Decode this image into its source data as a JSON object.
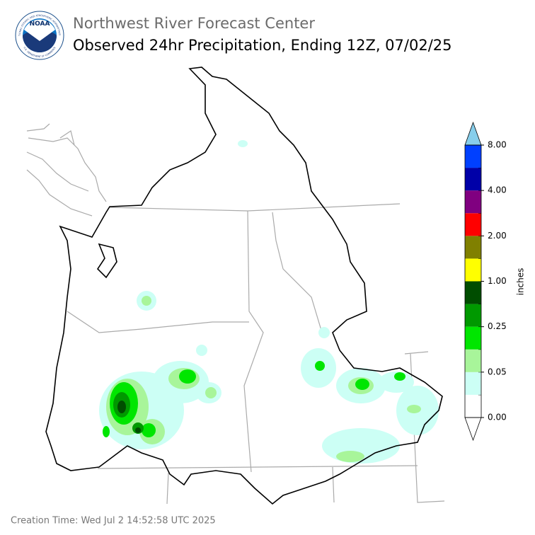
{
  "header": {
    "agency": "Northwest River Forecast Center",
    "title": "Observed 24hr Precipitation, Ending 12Z, 07/02/25",
    "logo": "NOAA",
    "logo_ring_top": "NATIONAL OCEANIC AND ATMOSPHERIC ADMINISTRATION",
    "logo_ring_bottom": "U.S. DEPARTMENT OF COMMERCE"
  },
  "colorbar": {
    "label": "inches",
    "colors": [
      "#ffffff",
      "#ccfff5",
      "#a8f59a",
      "#00e600",
      "#009900",
      "#004d00",
      "#ffff00",
      "#808000",
      "#ff0000",
      "#800080",
      "#0000a8",
      "#0040ff"
    ],
    "over_color": "#87ceeb",
    "ticks": [
      {
        "value": 0,
        "label": "0.00"
      },
      {
        "value": 0.05,
        "label": "0.05"
      },
      {
        "value": 0.25,
        "label": "0.25"
      },
      {
        "value": 1,
        "label": "1.00"
      },
      {
        "value": 2,
        "label": "2.00"
      },
      {
        "value": 4,
        "label": "4.00"
      },
      {
        "value": 8,
        "label": "8.00"
      }
    ]
  },
  "footer": "Creation Time: Wed Jul 2 14:52:58 UTC 2025"
}
